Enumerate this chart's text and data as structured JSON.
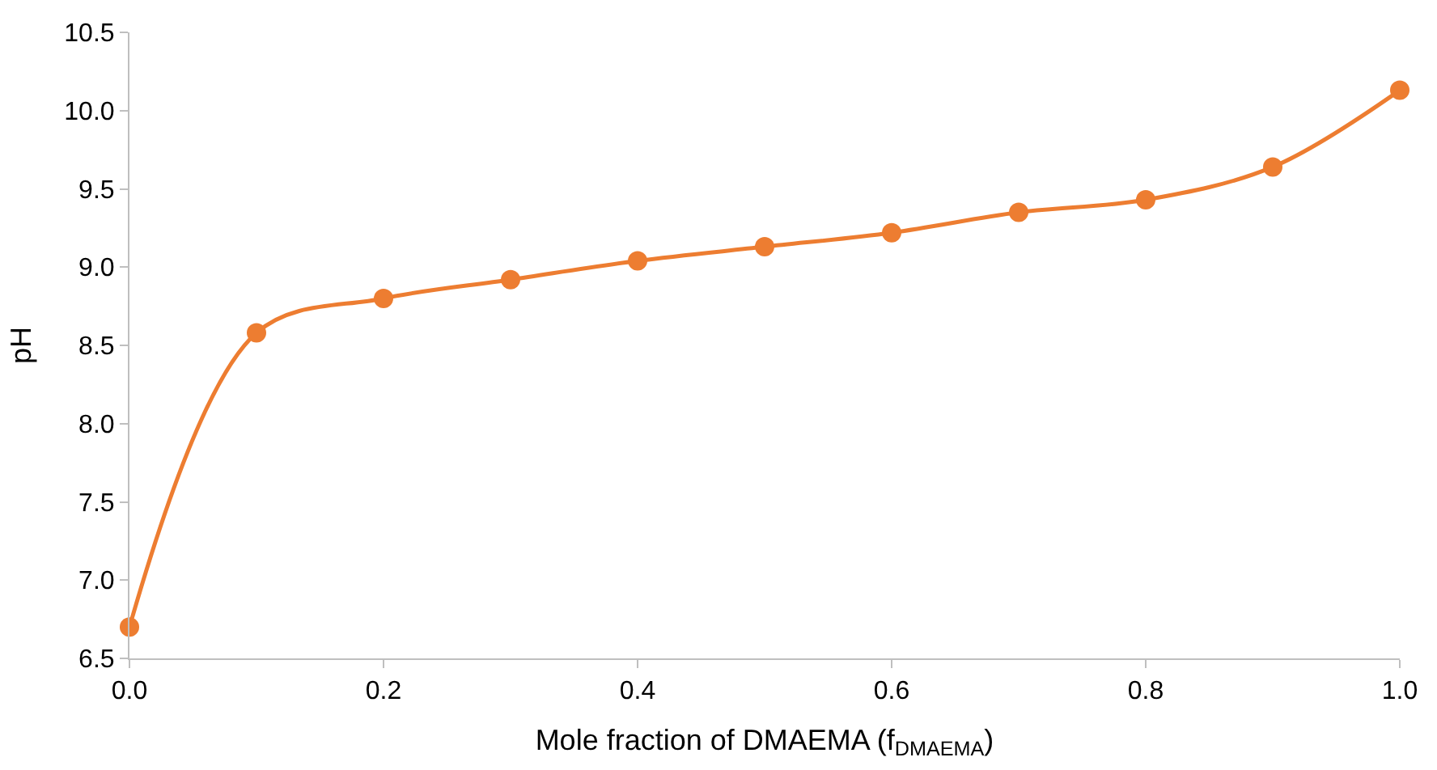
{
  "chart_data": {
    "type": "line",
    "xlabel": "Mole fraction of DMAEMA (f$_{DMAEMA}$)",
    "ylabel": "pH",
    "x": [
      0.0,
      0.1,
      0.2,
      0.3,
      0.4,
      0.5,
      0.6,
      0.7,
      0.8,
      0.9,
      1.0
    ],
    "series": [
      {
        "color": "#ed7d31",
        "values": [
          6.7,
          8.58,
          8.8,
          8.92,
          9.04,
          9.13,
          9.22,
          9.35,
          9.43,
          9.64,
          10.13
        ]
      }
    ],
    "xlim": [
      0.0,
      1.0
    ],
    "xticks": [
      {
        "value": 0.0,
        "label": "0.0"
      },
      {
        "value": 0.2,
        "label": "0.2"
      },
      {
        "value": 0.4,
        "label": "0.4"
      },
      {
        "value": 0.6,
        "label": "0.6"
      },
      {
        "value": 0.8,
        "label": "0.8"
      },
      {
        "value": 1.0,
        "label": "1.0"
      }
    ],
    "ylim": [
      6.5,
      10.5
    ],
    "yticks": [
      6.5,
      {
        "value": 7.0,
        "label": "7.0"
      },
      7.5,
      {
        "value": 8.0,
        "label": "8.0"
      },
      8.5,
      {
        "value": 9.0,
        "label": "9.0"
      },
      9.5,
      {
        "value": 10.0,
        "label": "10.0"
      },
      10.5
    ],
    "marker": "circle",
    "line_style": "solid"
  }
}
